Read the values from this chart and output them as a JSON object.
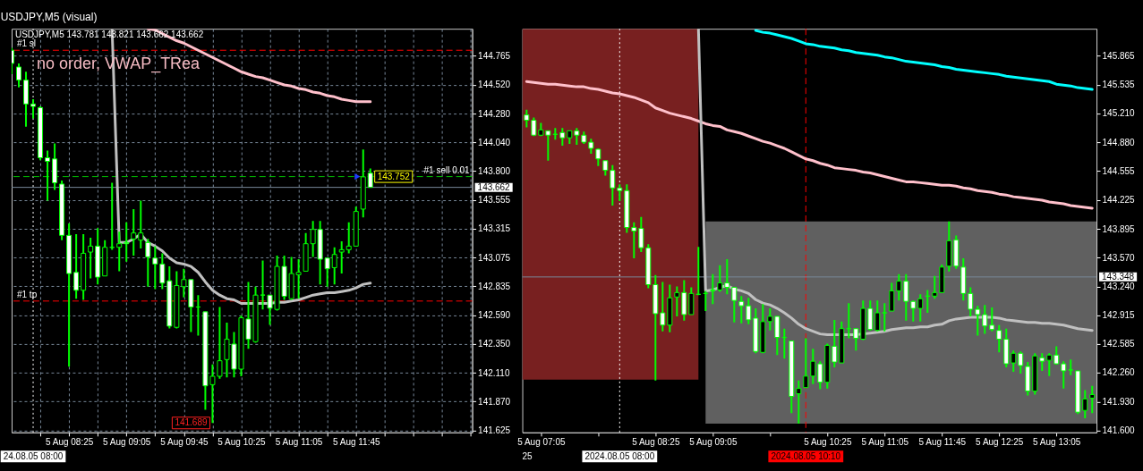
{
  "chart_data": [
    {
      "type": "candlestick",
      "title": "USDJPY,M5 (visual)",
      "subtitle": "USDJPY,M5 143.781 143.821 143.662 143.662",
      "annotations": [
        "no order, VWAP_TRea",
        {
          "text": "143.752",
          "x": "2024-08-05T11:50",
          "y": 143.752
        },
        {
          "text": "141.689",
          "x": "2024-08-05T10:05",
          "y": 141.689
        }
      ],
      "xlim": [
        "2024-08-05T07:45",
        "2024-08-05T13:06"
      ],
      "ylim": [
        141.61,
        144.99
      ],
      "xticks": [
        {
          "value": "2024-08-05T08:05",
          "label": null
        },
        {
          "value": "2024-08-05T08:25",
          "label": "5 Aug 08:25"
        },
        {
          "value": "2024-08-05T08:45",
          "label": null
        },
        {
          "value": "2024-08-05T09:05",
          "label": "5 Aug 09:05"
        },
        {
          "value": "2024-08-05T09:25",
          "label": null
        },
        {
          "value": "2024-08-05T09:45",
          "label": "5 Aug 09:45"
        },
        {
          "value": "2024-08-05T10:05",
          "label": null
        },
        {
          "value": "2024-08-05T10:25",
          "label": "5 Aug 10:25"
        },
        {
          "value": "2024-08-05T10:45",
          "label": null
        },
        {
          "value": "2024-08-05T11:05",
          "label": "5 Aug 11:05"
        },
        {
          "value": "2024-08-05T11:25",
          "label": null
        },
        {
          "value": "2024-08-05T11:45",
          "label": "5 Aug 11:45"
        },
        {
          "value": "2024-08-05T12:05",
          "label": null
        },
        {
          "value": "2024-08-05T12:25",
          "label": null
        },
        {
          "value": "2024-08-05T12:45",
          "label": null
        },
        {
          "value": "2024-08-05T13:05",
          "label": null
        }
      ],
      "yticks": [
        144.765,
        {
          "value": 144.52,
          "label": "144.520"
        },
        {
          "value": 144.28,
          "label": "144.280"
        },
        {
          "value": 144.04,
          "label": "144.040"
        },
        {
          "value": 143.8,
          "label": "143.800"
        },
        143.555,
        143.315,
        143.075,
        142.835,
        {
          "value": 142.59,
          "label": "142.590"
        },
        {
          "value": 142.35,
          "label": "142.350"
        },
        {
          "value": 142.11,
          "label": "142.110"
        },
        {
          "value": 141.87,
          "label": "141.870"
        },
        141.625
      ],
      "grid": true,
      "ref_lines": [
        {
          "axis": "x",
          "value": "2024-08-05T08:00",
          "label": "24.08.05 08:00",
          "color": "#ffffff",
          "line_style": "dotted"
        },
        {
          "axis": "y",
          "value": 144.81,
          "label": "#1 sl",
          "color": "#ff0000",
          "line_style": "dashed"
        },
        {
          "axis": "y",
          "value": 143.752,
          "label": "#1 sell 0.01",
          "color": "#00c000",
          "line_style": "dashed"
        },
        {
          "axis": "y",
          "value": 142.71,
          "label": "#1 tp",
          "color": "#ff0000",
          "line_style": "dashed"
        },
        {
          "axis": "y",
          "value": 143.662,
          "label": "143.662",
          "color": "#778899",
          "line_style": "solid"
        }
      ],
      "x": [
        "2024-08-05T07:45",
        "2024-08-05T07:50",
        "2024-08-05T07:55",
        "2024-08-05T08:00",
        "2024-08-05T08:05",
        "2024-08-05T08:10",
        "2024-08-05T08:15",
        "2024-08-05T08:20",
        "2024-08-05T08:25",
        "2024-08-05T08:30",
        "2024-08-05T08:35",
        "2024-08-05T08:40",
        "2024-08-05T08:45",
        "2024-08-05T08:50",
        "2024-08-05T08:55",
        "2024-08-05T09:00",
        "2024-08-05T09:05",
        "2024-08-05T09:10",
        "2024-08-05T09:15",
        "2024-08-05T09:20",
        "2024-08-05T09:25",
        "2024-08-05T09:30",
        "2024-08-05T09:35",
        "2024-08-05T09:40",
        "2024-08-05T09:45",
        "2024-08-05T09:50",
        "2024-08-05T09:55",
        "2024-08-05T10:00",
        "2024-08-05T10:05",
        "2024-08-05T10:10",
        "2024-08-05T10:15",
        "2024-08-05T10:20",
        "2024-08-05T10:25",
        "2024-08-05T10:30",
        "2024-08-05T10:35",
        "2024-08-05T10:40",
        "2024-08-05T10:45",
        "2024-08-05T10:50",
        "2024-08-05T10:55",
        "2024-08-05T11:00",
        "2024-08-05T11:05",
        "2024-08-05T11:10",
        "2024-08-05T11:15",
        "2024-08-05T11:20",
        "2024-08-05T11:25",
        "2024-08-05T11:30",
        "2024-08-05T11:35",
        "2024-08-05T11:40",
        "2024-08-05T11:45",
        "2024-08-05T11:50",
        "2024-08-05T11:55"
      ],
      "ohlc": [
        [
          144.81,
          144.83,
          144.61,
          144.7
        ],
        [
          144.67,
          144.7,
          144.5,
          144.56
        ],
        [
          144.56,
          144.63,
          144.17,
          144.36
        ],
        [
          144.36,
          144.4,
          144.24,
          144.34
        ],
        [
          144.33,
          144.34,
          143.89,
          143.91
        ],
        [
          143.91,
          143.97,
          143.55,
          143.88
        ],
        [
          143.9,
          144.03,
          143.64,
          143.7
        ],
        [
          143.69,
          143.72,
          143.22,
          143.26
        ],
        [
          143.26,
          143.36,
          142.16,
          142.94
        ],
        [
          142.95,
          143.27,
          142.73,
          142.8
        ],
        [
          142.8,
          143.27,
          142.72,
          143.11
        ],
        [
          143.12,
          143.24,
          142.9,
          143.17
        ],
        [
          143.17,
          143.32,
          142.85,
          142.91
        ],
        [
          142.92,
          143.22,
          142.92,
          143.16
        ],
        [
          143.16,
          143.7,
          143.14,
          143.16
        ],
        [
          143.16,
          143.29,
          142.96,
          143.19
        ],
        [
          143.2,
          143.37,
          143.04,
          143.19
        ],
        [
          143.23,
          143.48,
          143.09,
          143.28
        ],
        [
          143.22,
          143.55,
          143.15,
          143.28
        ],
        [
          143.2,
          143.23,
          142.83,
          143.08
        ],
        [
          143.07,
          143.17,
          142.81,
          143.02
        ],
        [
          143.02,
          143.11,
          142.81,
          142.86
        ],
        [
          142.88,
          143.0,
          142.48,
          142.5
        ],
        [
          142.49,
          142.96,
          142.48,
          142.84
        ],
        [
          142.83,
          142.98,
          142.74,
          142.89
        ],
        [
          142.89,
          142.89,
          142.45,
          142.66
        ],
        [
          142.66,
          142.76,
          142.42,
          142.66
        ],
        [
          142.62,
          142.62,
          141.8,
          142.0
        ],
        [
          142.01,
          142.18,
          141.689,
          142.08
        ],
        [
          142.08,
          142.66,
          142.06,
          142.21
        ],
        [
          142.22,
          142.53,
          142.07,
          142.39
        ],
        [
          142.35,
          142.45,
          142.07,
          142.14
        ],
        [
          142.14,
          142.59,
          142.08,
          142.57
        ],
        [
          142.56,
          142.87,
          142.31,
          142.39
        ],
        [
          142.37,
          142.83,
          142.36,
          142.76
        ],
        [
          142.76,
          143.05,
          142.64,
          142.76
        ],
        [
          142.76,
          142.76,
          142.51,
          142.65
        ],
        [
          142.64,
          143.09,
          142.63,
          143.0
        ],
        [
          143.0,
          143.09,
          142.72,
          142.75
        ],
        [
          142.73,
          143.08,
          142.72,
          142.94
        ],
        [
          142.93,
          143.06,
          142.73,
          142.95
        ],
        [
          142.96,
          143.28,
          142.96,
          143.19
        ],
        [
          143.19,
          143.38,
          143.08,
          143.31
        ],
        [
          143.31,
          143.38,
          142.85,
          143.06
        ],
        [
          143.07,
          143.07,
          142.83,
          142.98
        ],
        [
          142.99,
          143.16,
          142.85,
          143.1
        ],
        [
          143.12,
          143.21,
          142.94,
          143.14
        ],
        [
          143.14,
          143.37,
          143.11,
          143.17
        ],
        [
          143.17,
          143.5,
          143.17,
          143.46
        ],
        [
          143.48,
          143.98,
          143.41,
          143.75
        ],
        [
          143.781,
          143.821,
          143.662,
          143.662
        ]
      ],
      "color": "#00ff00",
      "colors": [
        "#ffffff",
        "#ffffff",
        "#ffffff",
        "#ffffff",
        "#ffffff",
        "#ffffff",
        "#ffffff",
        "#ffffff",
        "#ffffff",
        "#ffffff",
        "#000000",
        "#000000",
        "#ffffff",
        "#000000",
        "#00ff00",
        "#000000",
        "#ffffff",
        "#000000",
        "#000000",
        "#ffffff",
        "#ffffff",
        "#ffffff",
        "#ffffff",
        "#000000",
        "#000000",
        "#ffffff",
        "#00ff00",
        "#ffffff",
        "#000000",
        "#000000",
        "#000000",
        "#ffffff",
        "#000000",
        "#ffffff",
        "#000000",
        "#00ff00",
        "#ffffff",
        "#000000",
        "#ffffff",
        "#000000",
        "#000000",
        "#000000",
        "#000000",
        "#ffffff",
        "#ffffff",
        "#000000",
        "#000000",
        "#000000",
        "#000000",
        "#000000",
        "#ffffff"
      ],
      "series": [
        {
          "type": "line",
          "color": "#c0c0c0",
          "values": [
            null,
            null,
            null,
            null,
            null,
            null,
            null,
            null,
            null,
            null,
            null,
            null,
            null,
            null,
            144.99,
            143.2,
            143.2,
            143.23,
            143.27,
            143.2,
            143.17,
            143.13,
            143.07,
            143.03,
            143.02,
            143.0,
            142.95,
            142.87,
            142.8,
            142.76,
            142.73,
            142.72,
            142.69,
            142.69,
            142.69,
            142.69,
            142.69,
            142.7,
            142.7,
            142.71,
            142.72,
            142.74,
            142.76,
            142.77,
            142.78,
            142.78,
            142.79,
            142.8,
            142.82,
            142.85,
            142.86
          ]
        },
        {
          "type": "line",
          "color": "#ffc0cb",
          "values": [
            null,
            null,
            null,
            null,
            null,
            null,
            null,
            null,
            null,
            null,
            null,
            null,
            null,
            null,
            null,
            null,
            null,
            null,
            null,
            144.99,
            144.98,
            144.95,
            144.92,
            144.89,
            144.87,
            144.84,
            144.81,
            144.78,
            144.75,
            144.72,
            144.69,
            144.66,
            144.63,
            144.61,
            144.59,
            144.58,
            144.56,
            144.54,
            144.52,
            144.51,
            144.49,
            144.48,
            144.46,
            144.45,
            144.43,
            144.42,
            144.4,
            144.39,
            144.38,
            144.38,
            144.38
          ]
        },
        {
          "type": "scatter",
          "color": "#1e3cff",
          "marker": "triangle",
          "x": [
            "2024-08-05T11:46"
          ],
          "values": [
            143.752
          ]
        }
      ]
    },
    {
      "type": "candlestick",
      "annotations": [
        "25"
      ],
      "xlim": [
        "2024-08-05T06:52",
        "2024-08-05T13:33"
      ],
      "ylim": [
        141.58,
        146.17
      ],
      "xticks": [
        {
          "value": "2024-08-05T07:05",
          "label": "5 Aug 07:05"
        },
        {
          "value": "2024-08-05T07:45",
          "label": null
        },
        {
          "value": "2024-08-05T08:25",
          "label": "5 Aug 08:25"
        },
        {
          "value": "2024-08-05T09:05",
          "label": "5 Aug 09:05"
        },
        {
          "value": "2024-08-05T09:45",
          "label": null
        },
        {
          "value": "2024-08-05T10:25",
          "label": "5 Aug 10:25"
        },
        {
          "value": "2024-08-05T11:05",
          "label": "5 Aug 11:05"
        },
        {
          "value": "2024-08-05T11:45",
          "label": "5 Aug 11:45"
        },
        {
          "value": "2024-08-05T12:25",
          "label": "5 Aug 12:25"
        },
        {
          "value": "2024-08-05T13:05",
          "label": "5 Aug 13:05"
        }
      ],
      "yticks": [
        145.865,
        145.535,
        {
          "value": 145.21,
          "label": "145.210"
        },
        {
          "value": 144.88,
          "label": "144.880"
        },
        144.555,
        144.225,
        143.895,
        {
          "value": 143.57,
          "label": "143.570"
        },
        {
          "value": 143.24,
          "label": "143.240"
        },
        142.915,
        142.585,
        {
          "value": 142.26,
          "label": "142.260"
        },
        {
          "value": 141.93,
          "label": "141.930"
        },
        {
          "value": 141.6,
          "label": "141.600"
        }
      ],
      "ref_lines": [
        {
          "axis": "x",
          "value": "2024-08-05T08:00",
          "label": "2024.08.05 08:00",
          "color": "#ffffff",
          "line_style": "dotted"
        },
        {
          "axis": "x",
          "value": "2024-08-05T10:10",
          "label": "2024.08.05 10:10",
          "color": "#ff0000",
          "line_style": "dashed"
        },
        {
          "axis": "y",
          "value": 143.348,
          "label": "143.348",
          "color": "#778899",
          "line_style": "solid"
        }
      ],
      "x": [
        "2024-08-05T06:55",
        "2024-08-05T07:00",
        "2024-08-05T07:05",
        "2024-08-05T07:10",
        "2024-08-05T07:15",
        "2024-08-05T07:20",
        "2024-08-05T07:25",
        "2024-08-05T07:30",
        "2024-08-05T07:35",
        "2024-08-05T07:40",
        "2024-08-05T07:45",
        "2024-08-05T07:50",
        "2024-08-05T07:55",
        "2024-08-05T08:00",
        "2024-08-05T08:05",
        "2024-08-05T08:10",
        "2024-08-05T08:15",
        "2024-08-05T08:20",
        "2024-08-05T08:25",
        "2024-08-05T08:30",
        "2024-08-05T08:35",
        "2024-08-05T08:40",
        "2024-08-05T08:45",
        "2024-08-05T08:50",
        "2024-08-05T08:55",
        "2024-08-05T09:00",
        "2024-08-05T09:05",
        "2024-08-05T09:10",
        "2024-08-05T09:15",
        "2024-08-05T09:20",
        "2024-08-05T09:25",
        "2024-08-05T09:30",
        "2024-08-05T09:35",
        "2024-08-05T09:40",
        "2024-08-05T09:45",
        "2024-08-05T09:50",
        "2024-08-05T09:55",
        "2024-08-05T10:00",
        "2024-08-05T10:05",
        "2024-08-05T10:10",
        "2024-08-05T10:15",
        "2024-08-05T10:20",
        "2024-08-05T10:25",
        "2024-08-05T10:30",
        "2024-08-05T10:35",
        "2024-08-05T10:40",
        "2024-08-05T10:45",
        "2024-08-05T10:50",
        "2024-08-05T10:55",
        "2024-08-05T11:00",
        "2024-08-05T11:05",
        "2024-08-05T11:10",
        "2024-08-05T11:15",
        "2024-08-05T11:20",
        "2024-08-05T11:25",
        "2024-08-05T11:30",
        "2024-08-05T11:35",
        "2024-08-05T11:40",
        "2024-08-05T11:45",
        "2024-08-05T11:50",
        "2024-08-05T11:55",
        "2024-08-05T12:00",
        "2024-08-05T12:05",
        "2024-08-05T12:10",
        "2024-08-05T12:15",
        "2024-08-05T12:20",
        "2024-08-05T12:25",
        "2024-08-05T12:30",
        "2024-08-05T12:35",
        "2024-08-05T12:40",
        "2024-08-05T12:45",
        "2024-08-05T12:50",
        "2024-08-05T12:55",
        "2024-08-05T13:00",
        "2024-08-05T13:05",
        "2024-08-05T13:10",
        "2024-08-05T13:15",
        "2024-08-05T13:20",
        "2024-08-05T13:25",
        "2024-08-05T13:30"
      ],
      "ohlc": [
        [
          145.19,
          145.25,
          145.05,
          145.13
        ],
        [
          145.13,
          145.16,
          144.95,
          144.96
        ],
        [
          144.96,
          145.1,
          144.95,
          145.02
        ],
        [
          145.01,
          145.01,
          144.67,
          144.96
        ],
        [
          144.97,
          145.04,
          144.91,
          144.97
        ],
        [
          144.99,
          145.04,
          144.84,
          144.93
        ],
        [
          144.93,
          145.01,
          144.86,
          145.01
        ],
        [
          145.01,
          145.04,
          144.85,
          144.96
        ],
        [
          144.96,
          145.0,
          144.86,
          144.88
        ],
        [
          144.88,
          144.92,
          144.75,
          144.81
        ],
        [
          144.8,
          144.81,
          144.61,
          144.69
        ],
        [
          144.67,
          144.67,
          144.5,
          144.56
        ],
        [
          144.56,
          144.62,
          144.16,
          144.36
        ],
        [
          144.36,
          144.4,
          144.21,
          144.33
        ],
        [
          144.33,
          144.4,
          143.85,
          143.91
        ],
        [
          143.91,
          143.97,
          143.56,
          143.87
        ],
        [
          143.9,
          144.03,
          143.63,
          143.68
        ],
        [
          143.68,
          143.72,
          143.22,
          143.26
        ],
        [
          143.26,
          143.37,
          142.17,
          142.93
        ],
        [
          142.94,
          143.29,
          142.73,
          142.8
        ],
        [
          142.8,
          143.26,
          142.72,
          143.11
        ],
        [
          143.12,
          143.24,
          142.9,
          143.17
        ],
        [
          143.17,
          143.31,
          142.85,
          142.92
        ],
        [
          142.92,
          143.23,
          142.92,
          143.16
        ],
        [
          143.15,
          143.69,
          143.14,
          143.15
        ],
        [
          143.16,
          143.19,
          142.96,
          143.16
        ],
        [
          143.2,
          143.38,
          143.04,
          143.19
        ],
        [
          143.2,
          143.48,
          143.18,
          143.28
        ],
        [
          143.28,
          143.55,
          143.15,
          143.23
        ],
        [
          143.23,
          143.23,
          142.83,
          143.08
        ],
        [
          143.07,
          143.13,
          142.82,
          143.02
        ],
        [
          143.02,
          143.11,
          142.81,
          142.86
        ],
        [
          142.88,
          142.99,
          142.48,
          142.5
        ],
        [
          142.49,
          143.04,
          142.48,
          142.84
        ],
        [
          142.84,
          142.99,
          142.74,
          142.9
        ],
        [
          142.9,
          142.9,
          142.46,
          142.66
        ],
        [
          142.66,
          142.76,
          142.42,
          142.66
        ],
        [
          142.62,
          142.62,
          141.8,
          141.99
        ],
        [
          142.02,
          142.17,
          141.68,
          142.08
        ],
        [
          142.09,
          142.65,
          142.09,
          142.22
        ],
        [
          142.22,
          142.53,
          142.13,
          142.39
        ],
        [
          142.36,
          142.39,
          142.07,
          142.15
        ],
        [
          142.15,
          142.59,
          142.08,
          142.57
        ],
        [
          142.56,
          142.86,
          142.32,
          142.38
        ],
        [
          142.37,
          142.84,
          142.37,
          142.76
        ],
        [
          142.76,
          143.05,
          142.65,
          142.76
        ],
        [
          142.76,
          142.76,
          142.51,
          142.65
        ],
        [
          142.64,
          143.08,
          142.63,
          142.99
        ],
        [
          142.99,
          143.08,
          142.74,
          142.75
        ],
        [
          142.74,
          143.08,
          142.73,
          142.94
        ],
        [
          142.94,
          143.05,
          142.73,
          142.94
        ],
        [
          142.96,
          143.28,
          142.96,
          143.19
        ],
        [
          143.19,
          143.38,
          143.08,
          143.3
        ],
        [
          143.3,
          143.38,
          142.85,
          143.07
        ],
        [
          143.07,
          143.08,
          142.84,
          142.99
        ],
        [
          142.99,
          143.15,
          142.84,
          143.1
        ],
        [
          143.13,
          143.2,
          142.94,
          143.13
        ],
        [
          143.13,
          143.36,
          143.1,
          143.17
        ],
        [
          143.17,
          143.49,
          143.17,
          143.46
        ],
        [
          143.47,
          143.98,
          143.41,
          143.76
        ],
        [
          143.77,
          143.82,
          143.44,
          143.47
        ],
        [
          143.46,
          143.56,
          143.08,
          143.16
        ],
        [
          143.16,
          143.23,
          142.9,
          142.98
        ],
        [
          142.98,
          143.02,
          142.68,
          142.92
        ],
        [
          142.92,
          143.03,
          142.7,
          142.79
        ],
        [
          142.8,
          143.0,
          142.73,
          142.75
        ],
        [
          142.74,
          142.8,
          142.49,
          142.64
        ],
        [
          142.64,
          142.76,
          142.32,
          142.36
        ],
        [
          142.37,
          142.51,
          142.27,
          142.48
        ],
        [
          142.48,
          142.5,
          142.25,
          142.34
        ],
        [
          142.33,
          142.38,
          142.0,
          142.05
        ],
        [
          142.05,
          142.48,
          142.01,
          142.45
        ],
        [
          142.43,
          142.48,
          142.28,
          142.39
        ],
        [
          142.4,
          142.48,
          142.22,
          142.46
        ],
        [
          142.46,
          142.56,
          142.35,
          142.36
        ],
        [
          142.36,
          142.39,
          142.08,
          142.28
        ],
        [
          142.29,
          142.41,
          142.23,
          142.29
        ],
        [
          142.28,
          142.28,
          141.79,
          141.81
        ],
        [
          141.83,
          142.06,
          141.74,
          141.96
        ],
        [
          141.97,
          142.11,
          141.8,
          142.01
        ]
      ],
      "color": "#00ff00",
      "colors": [
        "#ffffff",
        "#ffffff",
        "#000000",
        "#ffffff",
        "#00ff00",
        "#ffffff",
        "#000000",
        "#ffffff",
        "#ffffff",
        "#ffffff",
        "#ffffff",
        "#ffffff",
        "#ffffff",
        "#ffffff",
        "#ffffff",
        "#ffffff",
        "#ffffff",
        "#ffffff",
        "#ffffff",
        "#ffffff",
        "#000000",
        "#000000",
        "#ffffff",
        "#000000",
        "#00ff00",
        "#00ff00",
        "#ffffff",
        "#000000",
        "#ffffff",
        "#ffffff",
        "#ffffff",
        "#ffffff",
        "#ffffff",
        "#000000",
        "#000000",
        "#ffffff",
        "#00ff00",
        "#ffffff",
        "#000000",
        "#000000",
        "#000000",
        "#ffffff",
        "#000000",
        "#ffffff",
        "#000000",
        "#00ff00",
        "#ffffff",
        "#000000",
        "#ffffff",
        "#000000",
        "#00ff00",
        "#000000",
        "#000000",
        "#ffffff",
        "#ffffff",
        "#000000",
        "#00ff00",
        "#000000",
        "#000000",
        "#000000",
        "#ffffff",
        "#ffffff",
        "#ffffff",
        "#ffffff",
        "#ffffff",
        "#ffffff",
        "#ffffff",
        "#ffffff",
        "#000000",
        "#ffffff",
        "#ffffff",
        "#000000",
        "#ffffff",
        "#000000",
        "#ffffff",
        "#ffffff",
        "#00ff00",
        "#ffffff",
        "#000000",
        "#000000"
      ],
      "series": [
        {
          "type": "line",
          "color": "#782020",
          "x": [
            "2024-08-05T06:52",
            "2024-08-05T08:55"
          ],
          "values": [
            null,
            null
          ],
          "upper": [
            146.17,
            146.17
          ],
          "lower": [
            142.18,
            142.18
          ]
        },
        {
          "type": "line",
          "color": "#606060",
          "x": [
            "2024-08-05T09:00",
            "2024-08-05T13:33"
          ],
          "values": [
            null,
            null
          ],
          "upper": [
            143.98,
            143.98
          ],
          "lower": [
            141.68,
            141.68
          ]
        },
        {
          "type": "line",
          "color": "#00ffff",
          "values": [
            null,
            null,
            null,
            null,
            null,
            null,
            null,
            null,
            null,
            null,
            null,
            null,
            null,
            null,
            null,
            null,
            null,
            null,
            null,
            null,
            null,
            null,
            null,
            null,
            null,
            null,
            null,
            null,
            null,
            null,
            null,
            null,
            146.15,
            146.13,
            146.12,
            146.1,
            146.08,
            146.06,
            146.03,
            146.0,
            145.99,
            145.97,
            145.96,
            145.95,
            145.93,
            145.92,
            145.9,
            145.89,
            145.88,
            145.87,
            145.85,
            145.84,
            145.82,
            145.8,
            145.79,
            145.78,
            145.77,
            145.76,
            145.74,
            145.73,
            145.71,
            145.7,
            145.69,
            145.68,
            145.67,
            145.66,
            145.65,
            145.63,
            145.62,
            145.61,
            145.6,
            145.59,
            145.58,
            145.57,
            145.54,
            145.53,
            145.52,
            145.5,
            145.49,
            145.48
          ]
        },
        {
          "type": "line",
          "color": "#ffc0cb",
          "values": [
            145.57,
            145.56,
            145.55,
            145.54,
            145.54,
            145.53,
            145.52,
            145.51,
            145.51,
            145.49,
            145.48,
            145.46,
            145.44,
            145.43,
            145.41,
            145.39,
            145.36,
            145.33,
            145.27,
            145.24,
            145.21,
            145.19,
            145.17,
            145.15,
            145.12,
            145.09,
            145.07,
            145.06,
            145.02,
            145.0,
            144.98,
            144.95,
            144.92,
            144.89,
            144.87,
            144.84,
            144.81,
            144.77,
            144.73,
            144.69,
            144.67,
            144.64,
            144.62,
            144.59,
            144.58,
            144.57,
            144.56,
            144.54,
            144.53,
            144.51,
            144.49,
            144.47,
            144.45,
            144.43,
            144.43,
            144.42,
            144.41,
            144.4,
            144.39,
            144.39,
            144.38,
            144.36,
            144.35,
            144.33,
            144.32,
            144.31,
            144.29,
            144.28,
            144.26,
            144.25,
            144.24,
            144.23,
            144.22,
            144.2,
            144.19,
            144.18,
            144.16,
            144.15,
            144.14,
            144.13
          ]
        },
        {
          "type": "line",
          "color": "#c0c0c0",
          "values": [
            null,
            null,
            null,
            null,
            null,
            null,
            null,
            null,
            null,
            null,
            null,
            null,
            null,
            null,
            null,
            null,
            null,
            null,
            null,
            null,
            null,
            null,
            null,
            null,
            146.17,
            143.19,
            143.2,
            143.23,
            143.25,
            143.21,
            143.19,
            143.16,
            143.09,
            143.05,
            143.03,
            142.99,
            142.94,
            142.88,
            142.81,
            142.76,
            142.73,
            142.7,
            142.69,
            142.69,
            142.69,
            142.69,
            142.69,
            142.7,
            142.71,
            142.72,
            142.73,
            142.75,
            142.76,
            142.77,
            142.77,
            142.78,
            142.78,
            142.8,
            142.81,
            142.85,
            142.87,
            142.88,
            142.89,
            142.89,
            142.89,
            142.89,
            142.88,
            142.86,
            142.85,
            142.84,
            142.83,
            142.83,
            142.82,
            142.82,
            142.81,
            142.8,
            142.78,
            142.76,
            142.75,
            142.74
          ]
        }
      ]
    }
  ]
}
